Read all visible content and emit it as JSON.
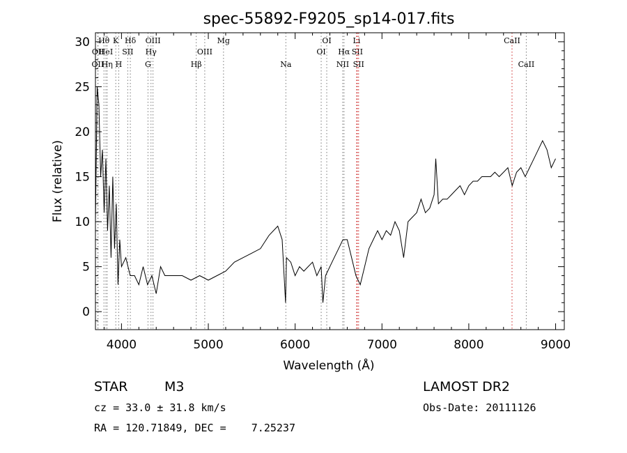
{
  "chart_data": {
    "type": "line",
    "title": "spec-55892-F9205_sp14-017.fits",
    "xlabel": "Wavelength (Å)",
    "ylabel": "Flux (relative)",
    "xlim": [
      3700,
      9100
    ],
    "ylim": [
      -2,
      31
    ],
    "xticks": [
      4000,
      5000,
      6000,
      7000,
      8000,
      9000
    ],
    "yticks": [
      0,
      5,
      10,
      15,
      20,
      25,
      30
    ],
    "grid": false,
    "line_color": "#000000",
    "series": [
      {
        "x": [
          3700,
          3720,
          3740,
          3760,
          3780,
          3800,
          3820,
          3840,
          3860,
          3880,
          3900,
          3920,
          3940,
          3960,
          3980,
          4000,
          4050,
          4100,
          4150,
          4200,
          4250,
          4300,
          4350,
          4400,
          4450,
          4500,
          4600,
          4700,
          4800,
          4900,
          5000,
          5100,
          5200,
          5300,
          5400,
          5500,
          5600,
          5700,
          5800,
          5850,
          5890,
          5900,
          5950,
          6000,
          6050,
          6100,
          6150,
          6200,
          6250,
          6300,
          6320,
          6350,
          6400,
          6450,
          6500,
          6550,
          6600,
          6650,
          6700,
          6750,
          6800,
          6850,
          6900,
          6950,
          7000,
          7050,
          7100,
          7150,
          7200,
          7250,
          7300,
          7350,
          7400,
          7450,
          7500,
          7550,
          7600,
          7620,
          7650,
          7700,
          7750,
          7800,
          7850,
          7900,
          7950,
          8000,
          8050,
          8100,
          8150,
          8200,
          8250,
          8300,
          8350,
          8400,
          8450,
          8500,
          8550,
          8600,
          8650,
          8700,
          8750,
          8800,
          8850,
          8900,
          8950,
          9000
        ],
        "y": [
          10,
          25,
          23,
          15,
          18,
          11,
          17,
          9,
          14,
          6,
          15,
          7,
          12,
          3,
          8,
          5,
          6,
          4,
          4,
          3,
          5,
          3,
          4,
          2,
          5,
          4,
          4,
          4,
          3.5,
          4,
          3.5,
          4,
          4.5,
          5.5,
          6,
          6.5,
          7,
          8.5,
          9.5,
          8,
          1,
          6,
          5.5,
          4,
          5,
          4.5,
          5,
          5.5,
          4,
          5,
          1,
          4,
          5,
          6,
          7,
          8,
          8,
          6,
          4,
          3,
          5,
          7,
          8,
          9,
          8,
          9,
          8.5,
          10,
          9,
          6,
          10,
          10.5,
          11,
          12.5,
          11,
          11.5,
          13,
          17,
          12,
          12.5,
          12.5,
          13,
          13.5,
          14,
          13,
          14,
          14.5,
          14.5,
          15,
          15,
          15,
          15.5,
          15,
          15.5,
          16,
          14,
          15.5,
          16,
          15,
          16,
          17,
          18,
          19,
          18,
          16,
          17
        ]
      }
    ],
    "lines": [
      {
        "name": "OII",
        "x": 3727,
        "color": "#777777",
        "row": 2
      },
      {
        "name": "OII",
        "x": 3730,
        "color": "#777777",
        "row": 1
      },
      {
        "name": "Hθ",
        "x": 3798,
        "color": "#777777",
        "row": 0
      },
      {
        "name": "HeI",
        "x": 3820,
        "color": "#777777",
        "row": 1
      },
      {
        "name": "Hη",
        "x": 3835,
        "color": "#777777",
        "row": 2
      },
      {
        "name": "K",
        "x": 3934,
        "color": "#777777",
        "row": 0
      },
      {
        "name": "SII",
        "x": 4072,
        "color": "#777777",
        "row": 1
      },
      {
        "name": "H",
        "x": 3968,
        "color": "#777777",
        "row": 2
      },
      {
        "name": "Hδ",
        "x": 4102,
        "color": "#777777",
        "row": 0
      },
      {
        "name": "OIII",
        "x": 4363,
        "color": "#777777",
        "row": 0
      },
      {
        "name": "Hγ",
        "x": 4340,
        "color": "#777777",
        "row": 1
      },
      {
        "name": "G",
        "x": 4305,
        "color": "#777777",
        "row": 2
      },
      {
        "name": "Hβ",
        "x": 4861,
        "color": "#777777",
        "row": 2
      },
      {
        "name": "OIII",
        "x": 4959,
        "color": "#777777",
        "row": 1
      },
      {
        "name": "Mg",
        "x": 5175,
        "color": "#777777",
        "row": 0
      },
      {
        "name": "Na",
        "x": 5893,
        "color": "#777777",
        "row": 2
      },
      {
        "name": "OI",
        "x": 6300,
        "color": "#777777",
        "row": 1
      },
      {
        "name": "OI",
        "x": 6364,
        "color": "#777777",
        "row": 0
      },
      {
        "name": "NII",
        "x": 6548,
        "color": "#777777",
        "row": 2
      },
      {
        "name": "Hα",
        "x": 6563,
        "color": "#777777",
        "row": 1
      },
      {
        "name": "Li",
        "x": 6708,
        "color": "#cc2222",
        "row": 0
      },
      {
        "name": "SII",
        "x": 6716,
        "color": "#cc2222",
        "row": 1
      },
      {
        "name": "SII",
        "x": 6731,
        "color": "#cc2222",
        "row": 2
      },
      {
        "name": "CaII",
        "x": 8498,
        "color": "#cc2222",
        "row": 0
      },
      {
        "name": "CaII",
        "x": 8662,
        "color": "#777777",
        "row": 2
      }
    ]
  },
  "info": {
    "class": "STAR",
    "subclass": "M3",
    "survey": "LAMOST DR2",
    "cz": "cz = 33.0 ± 31.8 km/s",
    "obs_date": "Obs-Date: 20111126",
    "coords": "RA = 120.71849, DEC =    7.25237"
  }
}
